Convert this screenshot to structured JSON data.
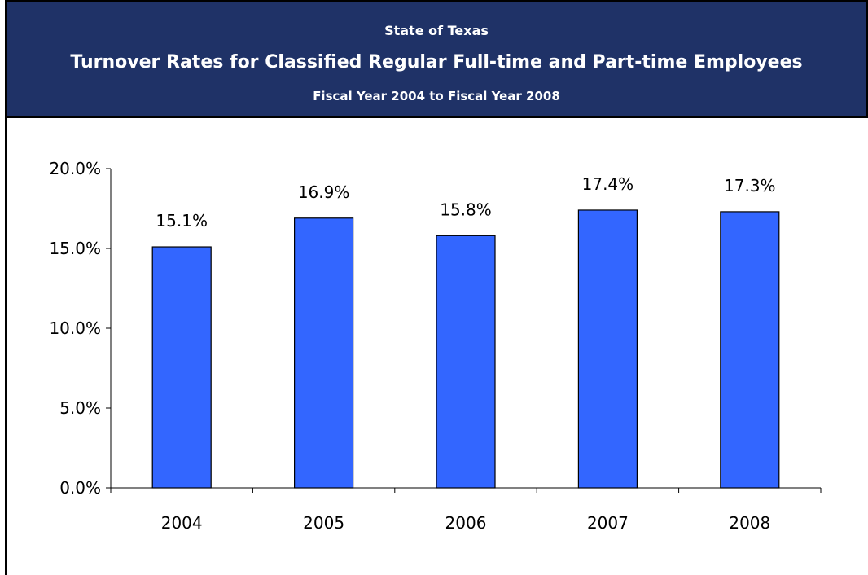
{
  "header": {
    "line1": "State of Texas",
    "title": "Turnover Rates for Classified Regular Full-time and Part-time Employees",
    "subtitle": "Fiscal Year 2004 to Fiscal Year 2008"
  },
  "colors": {
    "header_bg": "#1f3267",
    "bar": "#3366ff"
  },
  "chart_data": {
    "type": "bar",
    "title": "Turnover Rates for Classified Regular Full-time and Part-time Employees",
    "subtitle": "Fiscal Year 2004 to Fiscal Year 2008",
    "categories": [
      "2004",
      "2005",
      "2006",
      "2007",
      "2008"
    ],
    "values": [
      15.1,
      16.9,
      15.8,
      17.4,
      17.3
    ],
    "data_labels": [
      "15.1%",
      "16.9%",
      "15.8%",
      "17.4%",
      "17.3%"
    ],
    "ylim": [
      0,
      20
    ],
    "yticks": [
      0,
      5,
      10,
      15,
      20
    ],
    "ytick_labels": [
      "0.0%",
      "5.0%",
      "10.0%",
      "15.0%",
      "20.0%"
    ],
    "grid": false,
    "legend": "none"
  }
}
